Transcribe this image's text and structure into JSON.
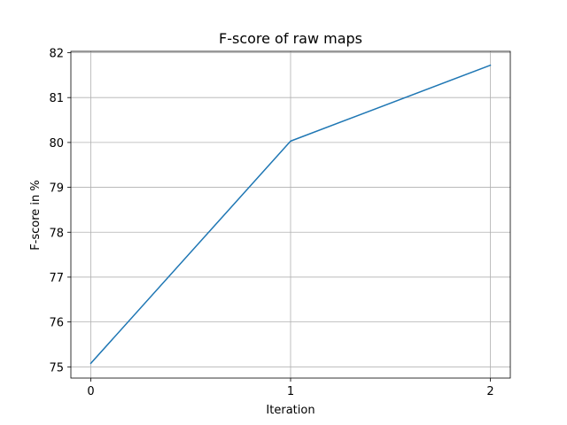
{
  "chart_data": {
    "type": "line",
    "title": "F-score of raw maps",
    "xlabel": "Iteration",
    "ylabel": "F-score in %",
    "x": [
      0,
      1,
      2
    ],
    "xticks": [
      "0",
      "1",
      "2"
    ],
    "xlim": [
      -0.1,
      2.1
    ],
    "yticks": [
      "75",
      "76",
      "77",
      "78",
      "79",
      "80",
      "81",
      "82"
    ],
    "ylim": [
      74.75,
      82.03
    ],
    "grid": true,
    "series": [
      {
        "values": [
          75.08,
          80.03,
          81.72
        ],
        "color": "#1f77b4"
      }
    ]
  }
}
